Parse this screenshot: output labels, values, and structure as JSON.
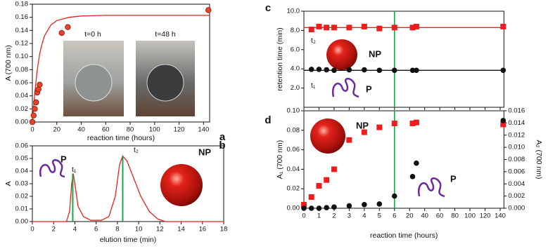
{
  "chart_data": [
    {
      "type": "scatter",
      "label": "a",
      "x_label": "reaction time (hours)",
      "y_label": "A (700 nm)",
      "xlim": [
        0,
        145
      ],
      "xticks": [
        0,
        20,
        40,
        60,
        80,
        100,
        120,
        140
      ],
      "ylim": [
        0,
        0.18
      ],
      "yticks": [
        {
          "value": 0,
          "label": "0.00"
        },
        {
          "value": 0.02,
          "label": "0.02"
        },
        {
          "value": 0.04,
          "label": "0.04"
        },
        {
          "value": 0.06,
          "label": "0.06"
        },
        {
          "value": 0.08,
          "label": "0.08"
        },
        {
          "value": 0.1,
          "label": "0.10"
        },
        {
          "value": 0.12,
          "label": "0.12"
        },
        {
          "value": 0.14,
          "label": "0.14"
        },
        {
          "value": 0.16,
          "label": "0.16"
        },
        {
          "value": 0.18,
          "label": "0.18"
        }
      ],
      "annotations": [
        "t=0 h",
        "t=48 h"
      ],
      "series": [
        {
          "kind": "line",
          "color": "#e8211c",
          "x": [
            0,
            2,
            4,
            6,
            8,
            10,
            15,
            20,
            30,
            40,
            60,
            80,
            100,
            145
          ],
          "values": [
            0,
            0.045,
            0.08,
            0.104,
            0.12,
            0.132,
            0.148,
            0.155,
            0.16,
            0.162,
            0.163,
            0.163,
            0.163,
            0.163
          ]
        },
        {
          "kind": "points",
          "marker": "circle",
          "color": "#e8412c",
          "edge": "#7a1a0e",
          "x": [
            0,
            1,
            2,
            3,
            4,
            5,
            6,
            24,
            29,
            144
          ],
          "values": [
            0,
            0.01,
            0.02,
            0.03,
            0.045,
            0.05,
            0.057,
            0.136,
            0.145,
            0.171
          ]
        }
      ]
    },
    {
      "type": "line",
      "label": "b",
      "x_label": "elution time (min)",
      "y_label": "A",
      "xlim": [
        0,
        18
      ],
      "xticks": [
        0,
        2,
        4,
        6,
        8,
        10,
        12,
        14,
        16,
        18
      ],
      "ylim": [
        0,
        0.06
      ],
      "yticks": [
        {
          "value": 0,
          "label": "0.00"
        },
        {
          "value": 0.01,
          "label": "0.01"
        },
        {
          "value": 0.02,
          "label": "0.02"
        },
        {
          "value": 0.03,
          "label": "0.03"
        },
        {
          "value": 0.04,
          "label": "0.04"
        },
        {
          "value": 0.05,
          "label": "0.05"
        },
        {
          "value": 0.06,
          "label": "0.06"
        }
      ],
      "annotations": [
        "P",
        "t₁",
        "t₂",
        "NP"
      ],
      "series": [
        {
          "kind": "line",
          "color": "#e8211c",
          "x": [
            0,
            3.2,
            3.5,
            3.7,
            3.85,
            4.0,
            4.3,
            4.8,
            5.5,
            6.5,
            7.2,
            7.8,
            8.2,
            8.5,
            8.9,
            9.5,
            10.2,
            11,
            11.8,
            12.5,
            18
          ],
          "values": [
            0,
            0,
            0.008,
            0.03,
            0.038,
            0.03,
            0.012,
            0.004,
            0.001,
            0.001,
            0.004,
            0.02,
            0.045,
            0.052,
            0.048,
            0.035,
            0.02,
            0.008,
            0.002,
            0,
            0
          ]
        },
        {
          "kind": "stem",
          "color": "#1aa64a",
          "x": [
            3.8,
            8.5
          ],
          "values": [
            0.038,
            0.052
          ]
        }
      ]
    },
    {
      "type": "scatter",
      "label": "c",
      "y_label": "retention time (min)",
      "xscale": "segmented",
      "xtick_labels": false,
      "xlim": [
        0,
        145
      ],
      "xticks": [
        0,
        1,
        2,
        3,
        4,
        5,
        6,
        20,
        40,
        60,
        80,
        100,
        120,
        140
      ],
      "ylim": [
        0,
        10
      ],
      "yticks": [
        {
          "value": 2,
          "label": "2.0"
        },
        {
          "value": 4,
          "label": "4.0"
        },
        {
          "value": 6,
          "label": "6.0"
        },
        {
          "value": 8,
          "label": "8.0"
        },
        {
          "value": 10,
          "label": "10.0"
        }
      ],
      "vline_x": 6,
      "vline_color": "#1aa64a",
      "annotations": [
        "t₂",
        "NP",
        "t₁",
        "P"
      ],
      "series": [
        {
          "kind": "line",
          "color": "#e8211c",
          "x": [
            0,
            145
          ],
          "values": [
            8.3,
            8.3
          ]
        },
        {
          "kind": "line",
          "color": "#111111",
          "x": [
            0,
            145
          ],
          "values": [
            3.85,
            3.85
          ]
        },
        {
          "kind": "points",
          "marker": "square",
          "color": "#ee1c1c",
          "x": [
            0.5,
            1,
            1.5,
            2,
            3,
            4,
            5,
            6,
            24,
            29,
            144
          ],
          "values": [
            8.1,
            8.4,
            8.3,
            8.3,
            8.3,
            8.4,
            8.2,
            8.3,
            8.3,
            8.4,
            8.4
          ]
        },
        {
          "kind": "points",
          "marker": "circle",
          "color": "#111111",
          "x": [
            0.5,
            1,
            1.5,
            2,
            3,
            4,
            5,
            6,
            24,
            29,
            144
          ],
          "values": [
            3.95,
            3.95,
            3.9,
            3.85,
            3.9,
            3.9,
            3.85,
            3.85,
            3.85,
            3.85,
            3.85
          ]
        }
      ]
    },
    {
      "type": "scatter",
      "label": "d",
      "x_label": "reaction time (hours)",
      "y_label": "A₁ (700 nm)",
      "y2_label": "A₂ (700 nm)",
      "xscale": "segmented",
      "xlim": [
        0,
        145
      ],
      "xticks": [
        0,
        1,
        2,
        3,
        4,
        5,
        6,
        20,
        40,
        60,
        80,
        100,
        120,
        140
      ],
      "ylim": [
        0,
        0.1
      ],
      "yticks": [
        {
          "value": 0,
          "label": "0.00"
        },
        {
          "value": 0.02,
          "label": "0.02"
        },
        {
          "value": 0.04,
          "label": "0.04"
        },
        {
          "value": 0.06,
          "label": "0.06"
        },
        {
          "value": 0.08,
          "label": "0.08"
        },
        {
          "value": 0.1,
          "label": "0.10"
        }
      ],
      "y2lim": [
        0,
        0.016
      ],
      "y2ticks": [
        {
          "value": 0,
          "label": "0.000"
        },
        {
          "value": 0.002,
          "label": "0.002"
        },
        {
          "value": 0.004,
          "label": "0.004"
        },
        {
          "value": 0.006,
          "label": "0.006"
        },
        {
          "value": 0.008,
          "label": "0.008"
        },
        {
          "value": 0.01,
          "label": "0.010"
        },
        {
          "value": 0.012,
          "label": "0.012"
        },
        {
          "value": 0.014,
          "label": "0.014"
        },
        {
          "value": 0.016,
          "label": "0.016"
        }
      ],
      "vline_x": 6,
      "vline_color": "#1aa64a",
      "annotations": [
        "NP",
        "P"
      ],
      "series": [
        {
          "kind": "points",
          "marker": "square",
          "color": "#ee1c1c",
          "x": [
            0,
            0.5,
            1,
            1.5,
            2,
            3,
            4,
            5,
            6,
            24,
            29,
            144
          ],
          "values": [
            0.0036,
            0.0115,
            0.023,
            0.029,
            0.04,
            0.07,
            0.078,
            0.083,
            0.087,
            0.087,
            0.088,
            0.086
          ]
        },
        {
          "kind": "points",
          "marker": "circle",
          "axis": "y2",
          "color": "#111111",
          "x": [
            0,
            0.5,
            1,
            1.5,
            2,
            3,
            4,
            5,
            6,
            24,
            29,
            144
          ],
          "values": [
            0,
            0,
            0,
            0.0001,
            0.0002,
            0.0004,
            0.0006,
            0.0007,
            0.002,
            0.0052,
            0.0074,
            0.0144
          ]
        }
      ]
    }
  ]
}
